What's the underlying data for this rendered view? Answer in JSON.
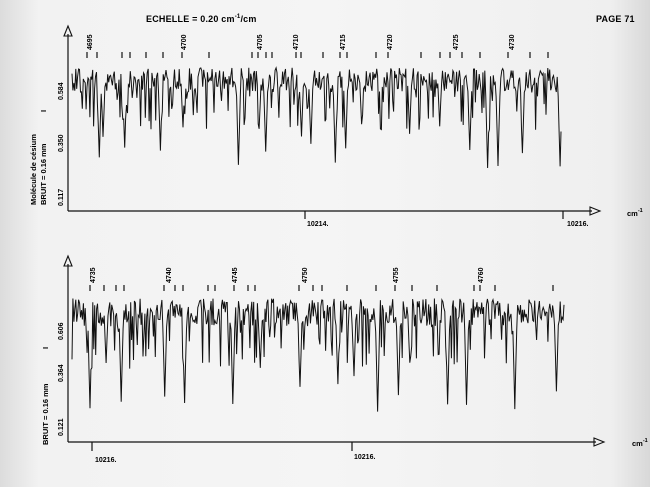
{
  "header": {
    "echelle_prefix": "ECHELLE = 0.20 cm",
    "echelle_exp": "-1",
    "echelle_suffix": "/cm",
    "page": "PAGE 71"
  },
  "colors": {
    "ink": "#111111",
    "paper": "#f3f3f3",
    "margin_shadow": "#d8d8d8"
  },
  "chart_data": [
    {
      "type": "line",
      "panel": "top",
      "ylabel_molecule": "Molécule de césium",
      "ylabel_bruit": "BRUIT = 0.16 mm",
      "ylabel_I": "I",
      "y_ticks": [
        "0.117",
        "0.350",
        "0.584"
      ],
      "x_unit": "cm",
      "x_unit_exp": "-1",
      "x_axis_labels": [
        "10214.",
        "10216."
      ],
      "line_numbers": [
        "4695",
        "4700",
        "4705",
        "4710",
        "4715",
        "4720",
        "4725",
        "4730"
      ],
      "wavenumber_range": [
        10213.9,
        10215.9
      ],
      "intensity_range": [
        0.117,
        0.7
      ]
    },
    {
      "type": "line",
      "panel": "bottom",
      "ylabel_bruit": "BRUIT = 0.16 mm",
      "ylabel_I": "I",
      "y_ticks": [
        "0.121",
        "0.364",
        "0.606"
      ],
      "x_unit": "cm",
      "x_unit_exp": "-1",
      "x_axis_labels": [
        "10216.",
        "10216."
      ],
      "line_numbers": [
        "4735",
        "4740",
        "4745",
        "4750",
        "4755",
        "4760"
      ],
      "wavenumber_range": [
        10215.9,
        10217.9
      ],
      "intensity_range": [
        0.121,
        0.72
      ]
    }
  ]
}
